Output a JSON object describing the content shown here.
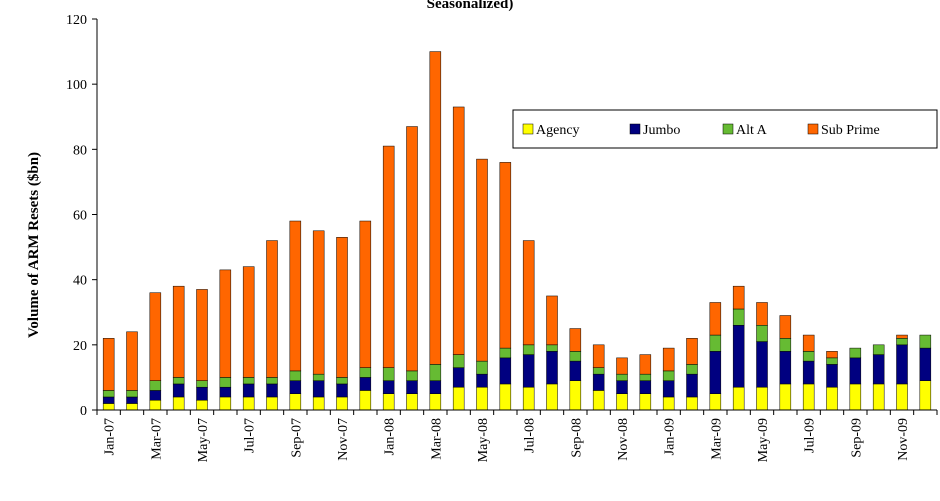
{
  "chart_data": {
    "type": "bar",
    "stacked": true,
    "title": "Seasonalized)",
    "ylabel": "Volume of ARM Resets ($bn)",
    "xlabel": "",
    "ylim": [
      0,
      120
    ],
    "yticks": [
      0,
      20,
      40,
      60,
      80,
      100,
      120
    ],
    "legend_position": "top-right",
    "grid": false,
    "categories": [
      "Jan-07",
      "Feb-07",
      "Mar-07",
      "Apr-07",
      "May-07",
      "Jun-07",
      "Jul-07",
      "Aug-07",
      "Sep-07",
      "Oct-07",
      "Nov-07",
      "Dec-07",
      "Jan-08",
      "Feb-08",
      "Mar-08",
      "Apr-08",
      "May-08",
      "Jun-08",
      "Jul-08",
      "Aug-08",
      "Sep-08",
      "Oct-08",
      "Nov-08",
      "Dec-08",
      "Jan-09",
      "Feb-09",
      "Mar-09",
      "Apr-09",
      "May-09",
      "Jun-09",
      "Jul-09",
      "Aug-09",
      "Sep-09",
      "Oct-09",
      "Nov-09",
      "Dec-09"
    ],
    "xtick_labels": [
      "Jan-07",
      "Mar-07",
      "May-07",
      "Jul-07",
      "Sep-07",
      "Nov-07",
      "Jan-08",
      "Mar-08",
      "May-08",
      "Jul-08",
      "Sep-08",
      "Nov-08",
      "Jan-09",
      "Mar-09",
      "May-09",
      "Jul-09",
      "Sep-09",
      "Nov-09"
    ],
    "series": [
      {
        "name": "Agency",
        "color": "#ffff00",
        "values": [
          2,
          2,
          3,
          4,
          3,
          4,
          4,
          4,
          5,
          4,
          4,
          6,
          5,
          5,
          5,
          7,
          7,
          8,
          7,
          8,
          9,
          6,
          5,
          5,
          4,
          4,
          5,
          7,
          7,
          8,
          8,
          7,
          8,
          8,
          8,
          9
        ]
      },
      {
        "name": "Jumbo",
        "color": "#000080",
        "values": [
          2,
          2,
          3,
          4,
          4,
          3,
          4,
          4,
          4,
          5,
          4,
          4,
          4,
          4,
          4,
          6,
          4,
          8,
          10,
          10,
          6,
          5,
          4,
          4,
          5,
          7,
          13,
          19,
          14,
          10,
          7,
          7,
          8,
          9,
          12,
          10
        ]
      },
      {
        "name": "Alt A",
        "color": "#66bb33",
        "values": [
          2,
          2,
          3,
          2,
          2,
          3,
          2,
          2,
          3,
          2,
          2,
          3,
          4,
          3,
          5,
          4,
          4,
          3,
          3,
          2,
          3,
          2,
          2,
          2,
          3,
          3,
          5,
          5,
          5,
          4,
          3,
          2,
          3,
          3,
          2,
          4
        ]
      },
      {
        "name": "Sub Prime",
        "color": "#ff6600",
        "values": [
          16,
          18,
          27,
          28,
          28,
          33,
          34,
          42,
          46,
          44,
          43,
          45,
          68,
          75,
          96,
          76,
          62,
          57,
          32,
          15,
          7,
          7,
          5,
          6,
          7,
          8,
          10,
          7,
          7,
          7,
          5,
          2,
          0,
          0,
          1,
          0
        ]
      }
    ]
  }
}
